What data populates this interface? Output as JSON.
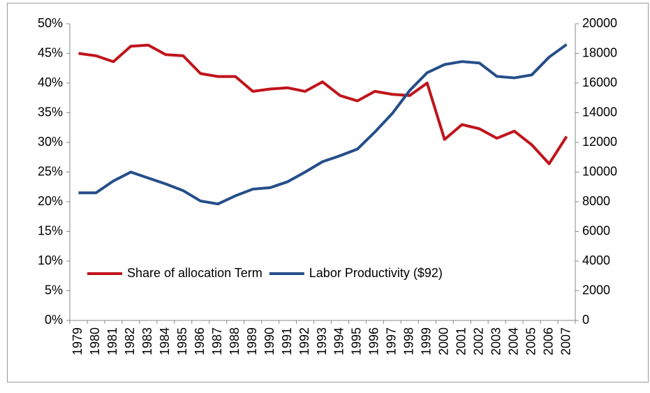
{
  "chart_data": {
    "type": "line",
    "categories": [
      "1979",
      "1980",
      "1981",
      "1982",
      "1983",
      "1984",
      "1985",
      "1986",
      "1987",
      "1988",
      "1989",
      "1990",
      "1991",
      "1992",
      "1993",
      "1994",
      "1995",
      "1996",
      "1997",
      "1998",
      "1999",
      "2000",
      "2001",
      "2002",
      "2003",
      "2004",
      "2005",
      "2006",
      "2007"
    ],
    "series": [
      {
        "name": "Share of allocation Term",
        "color": "#c0141b",
        "axis": "y",
        "values": [
          45.0,
          44.6,
          43.6,
          46.2,
          46.4,
          44.8,
          44.6,
          41.6,
          41.1,
          41.1,
          38.6,
          39.0,
          39.2,
          38.6,
          40.2,
          37.9,
          37.0,
          38.6,
          38.1,
          37.9,
          40.0,
          30.5,
          33.0,
          32.3,
          30.7,
          31.9,
          29.6,
          26.4,
          31.0
        ]
      },
      {
        "name": "Labor Productivity ($92)",
        "color": "#254e89",
        "axis": "y2",
        "values": [
          8600,
          8600,
          9400,
          10000,
          9600,
          9200,
          8750,
          8050,
          7850,
          8400,
          8850,
          8950,
          9350,
          10000,
          10700,
          11100,
          11550,
          12700,
          13950,
          15500,
          16700,
          17250,
          17450,
          17350,
          16450,
          16350,
          16550,
          17750,
          18600
        ]
      }
    ],
    "ylim": [
      0,
      50
    ],
    "yticks": [
      {
        "value": 0,
        "label": "0%"
      },
      {
        "value": 5,
        "label": "5%"
      },
      {
        "value": 10,
        "label": "10%"
      },
      {
        "value": 15,
        "label": "15%"
      },
      {
        "value": 20,
        "label": "20%"
      },
      {
        "value": 25,
        "label": "25%"
      },
      {
        "value": 30,
        "label": "30%"
      },
      {
        "value": 35,
        "label": "35%"
      },
      {
        "value": 40,
        "label": "40%"
      },
      {
        "value": 45,
        "label": "45%"
      },
      {
        "value": 50,
        "label": "50%"
      }
    ],
    "y2lim": [
      0,
      20000
    ],
    "y2ticks": [
      0,
      2000,
      4000,
      6000,
      8000,
      10000,
      12000,
      14000,
      16000,
      18000,
      20000
    ],
    "grid": false,
    "legend": "lower-left"
  }
}
